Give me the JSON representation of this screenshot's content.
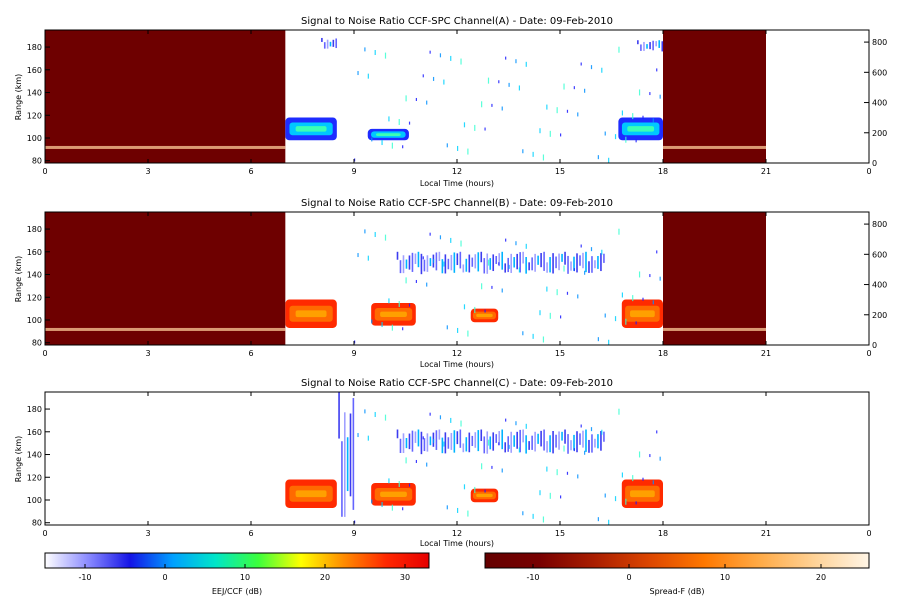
{
  "colors": {
    "saturated_dark_red": "#6e0000",
    "background": "#ffffff",
    "eej_ccf_scale": [
      "#ffffff",
      "#8c8cff",
      "#1414e6",
      "#00a0ff",
      "#00e6c8",
      "#3cff3c",
      "#ffff00",
      "#ff8c00",
      "#ff2800",
      "#e60000"
    ],
    "spread_f_scale": [
      "#640000",
      "#780000",
      "#aa1e00",
      "#dc4600",
      "#ff7800",
      "#ffaa46",
      "#ffd296",
      "#fff5e6"
    ]
  },
  "chart_data": [
    {
      "type": "heatmap",
      "title": "Signal to Noise Ratio CCF-SPC Channel(A) - Date: 09-Feb-2010",
      "xlabel": "Local Time (hours)",
      "ylabel": "Range (km)",
      "xlim": [
        0,
        24
      ],
      "ylim": [
        78,
        195
      ],
      "x_ticks": [
        "0",
        "3",
        "6",
        "9",
        "12",
        "15",
        "18",
        "21",
        "0"
      ],
      "y_ticks": [
        "80",
        "100",
        "120",
        "140",
        "160",
        "180"
      ],
      "right_ticks": [
        "0",
        "200",
        "400",
        "600",
        "800"
      ],
      "saturated_blocks": [
        [
          0,
          7
        ],
        [
          18,
          21
        ]
      ],
      "echo_regions": [
        {
          "t0": 7.0,
          "t1": 8.5,
          "r0": 98,
          "r1": 118,
          "level": "high"
        },
        {
          "t0": 9.4,
          "t1": 10.6,
          "r0": 98,
          "r1": 108,
          "level": "high"
        },
        {
          "t0": 16.7,
          "t1": 18.0,
          "r0": 98,
          "r1": 118,
          "level": "high"
        },
        {
          "t0": 17.2,
          "t1": 18.0,
          "r0": 176,
          "r1": 186,
          "level": "low"
        },
        {
          "t0": 8.0,
          "t1": 8.5,
          "r0": 178,
          "r1": 188,
          "level": "low"
        }
      ]
    },
    {
      "type": "heatmap",
      "title": "Signal to Noise Ratio CCF-SPC Channel(B) - Date: 09-Feb-2010",
      "xlabel": "Local Time (hours)",
      "ylabel": "Range (km)",
      "xlim": [
        0,
        24
      ],
      "ylim": [
        78,
        195
      ],
      "x_ticks": [
        "0",
        "3",
        "6",
        "9",
        "12",
        "15",
        "18",
        "21",
        "0"
      ],
      "y_ticks": [
        "80",
        "100",
        "120",
        "140",
        "160",
        "180"
      ],
      "right_ticks": [
        "0",
        "200",
        "400",
        "600",
        "800"
      ],
      "saturated_blocks": [
        [
          0,
          7
        ],
        [
          18,
          21
        ]
      ],
      "echo_regions": [
        {
          "t0": 7.0,
          "t1": 8.5,
          "r0": 93,
          "r1": 118,
          "level": "high"
        },
        {
          "t0": 9.5,
          "t1": 10.8,
          "r0": 95,
          "r1": 115,
          "level": "high"
        },
        {
          "t0": 12.4,
          "t1": 13.2,
          "r0": 98,
          "r1": 110,
          "level": "high"
        },
        {
          "t0": 16.8,
          "t1": 18.0,
          "r0": 93,
          "r1": 118,
          "level": "high"
        },
        {
          "t0": 10.2,
          "t1": 16.3,
          "r0": 140,
          "r1": 160,
          "level": "low"
        }
      ]
    },
    {
      "type": "heatmap",
      "title": "Signal to Noise Ratio CCF-SPC Channel(C) - Date: 09-Feb-2010",
      "xlabel": "Local Time (hours)",
      "ylabel": "Range (km)",
      "xlim": [
        0,
        24
      ],
      "ylim": [
        78,
        195
      ],
      "x_ticks": [
        "0",
        "3",
        "6",
        "9",
        "12",
        "15",
        "18",
        "21",
        "0"
      ],
      "y_ticks": [
        "80",
        "100",
        "120",
        "140",
        "160",
        "180"
      ],
      "saturated_blocks": [],
      "echo_regions": [
        {
          "t0": 7.0,
          "t1": 8.5,
          "r0": 93,
          "r1": 118,
          "level": "high"
        },
        {
          "t0": 9.5,
          "t1": 10.8,
          "r0": 95,
          "r1": 115,
          "level": "high"
        },
        {
          "t0": 12.4,
          "t1": 13.2,
          "r0": 98,
          "r1": 110,
          "level": "high"
        },
        {
          "t0": 16.8,
          "t1": 18.0,
          "r0": 93,
          "r1": 118,
          "level": "high"
        },
        {
          "t0": 10.2,
          "t1": 16.3,
          "r0": 140,
          "r1": 162,
          "level": "low"
        },
        {
          "t0": 8.5,
          "t1": 9.0,
          "r0": 78,
          "r1": 195,
          "level": "low"
        }
      ]
    }
  ],
  "colorbars": [
    {
      "label": "EEJ/CCF (dB)",
      "ticks": [
        "-10",
        "0",
        "10",
        "20",
        "30"
      ],
      "range": [
        -15,
        33
      ]
    },
    {
      "label": "Spread-F (dB)",
      "ticks": [
        "-10",
        "0",
        "10",
        "20"
      ],
      "range": [
        -15,
        25
      ]
    }
  ]
}
